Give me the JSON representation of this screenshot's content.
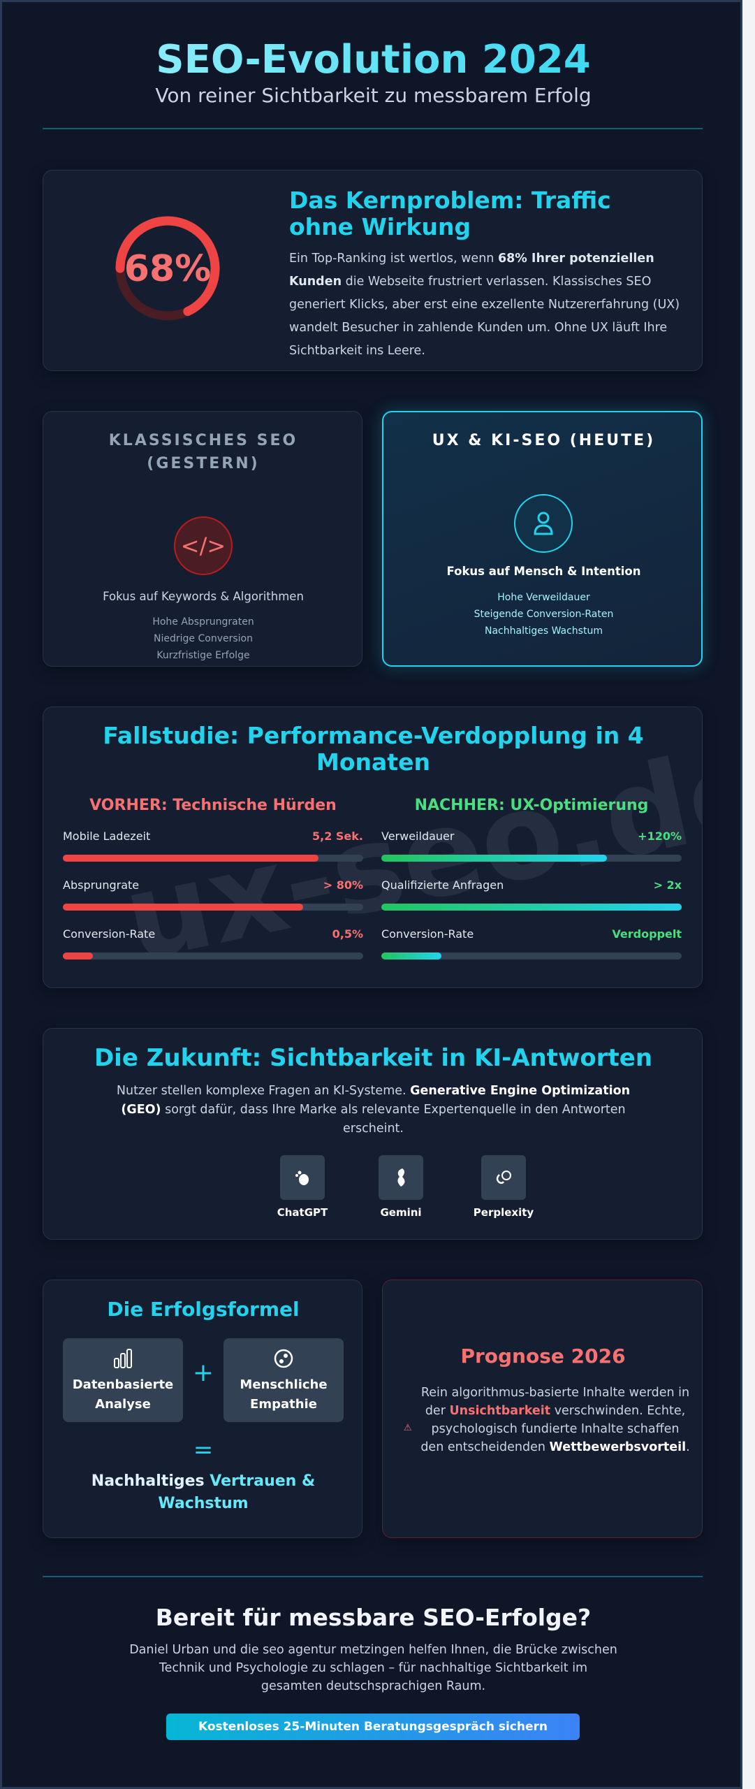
{
  "header": {
    "title": "SEO-Evolution 2024",
    "subtitle": "Von reiner Sichtbarkeit zu messbarem Erfolg"
  },
  "problem": {
    "percent": 68,
    "percent_label": "68%",
    "title": "Das Kernproblem: Traffic ohne Wirkung",
    "text_pre": "Ein Top-Ranking ist wertlos, wenn ",
    "text_bold": "68% Ihrer potenziellen Kunden",
    "text_post": " die Webseite frustriert verlassen. Klassisches SEO generiert Klicks, aber erst eine exzellente Nutzererfahrung (UX) wandelt Besucher in zahlende Kunden um. Ohne UX läuft Ihre Sichtbarkeit ins Leere."
  },
  "classic": {
    "title": "KLASSISCHES SEO (GESTERN)",
    "icon": "code-icon",
    "focus": "Fokus auf Keywords & Algorithmen",
    "items": [
      "Hohe Absprungraten",
      "Niedrige Conversion",
      "Kurzfristige Erfolge"
    ]
  },
  "modern": {
    "title": "UX & KI-SEO (HEUTE)",
    "icon": "user-icon",
    "focus": "Fokus auf Mensch & Intention",
    "items": [
      "Hohe Verweildauer",
      "Steigende Conversion-Raten",
      "Nachhaltiges Wachstum"
    ]
  },
  "case": {
    "title": "Fallstudie: Performance-Verdopplung in 4 Monaten",
    "watermark": "ux-seo.de",
    "before": {
      "heading": "VORHER: Technische Hürden",
      "color": "#f87171",
      "metrics": [
        {
          "label": "Mobile Ladezeit",
          "value": "5,2 Sek.",
          "fill": 85
        },
        {
          "label": "Absprungrate",
          "value": "> 80%",
          "fill": 80
        },
        {
          "label": "Conversion-Rate",
          "value": "0,5%",
          "fill": 10
        }
      ]
    },
    "after": {
      "heading": "NACHHER: UX-Optimierung",
      "color": "#4ade80",
      "metrics": [
        {
          "label": "Verweildauer",
          "value": "+120%",
          "fill": 75
        },
        {
          "label": "Qualifizierte Anfragen",
          "value": "> 2x",
          "fill": 100
        },
        {
          "label": "Conversion-Rate",
          "value": "Verdoppelt",
          "fill": 20
        }
      ]
    }
  },
  "future": {
    "title": "Die Zukunft: Sichtbarkeit in KI-Antworten",
    "text_pre": "Nutzer stellen komplexe Fragen an KI-Systeme. ",
    "text_bold": "Generative Engine Optimization (GEO)",
    "text_post": " sorgt dafür, dass Ihre Marke als relevante Expertenquelle in den Antworten erscheint.",
    "tools": [
      {
        "name": "ChatGPT",
        "icon": "chatgpt-icon"
      },
      {
        "name": "Gemini",
        "icon": "gemini-icon"
      },
      {
        "name": "Perplexity",
        "icon": "perplexity-icon"
      }
    ]
  },
  "formula": {
    "title": "Die Erfolgsformel",
    "a": "Datenbasierte Analyse",
    "b": "Menschliche Empathie",
    "plus": "+",
    "equals": "=",
    "result_a": "Nachhaltiges ",
    "result_b": "Vertrauen & Wachstum"
  },
  "forecast": {
    "title": "Prognose 2026",
    "t1": "Rein algorithmus-basierte Inhalte werden in der ",
    "hl": "Unsichtbarkeit",
    "t2": " verschwinden. Echte, psychologisch fundierte Inhalte schaffen den entscheidenden ",
    "bold": "Wettbewerbsvorteil",
    "t3": "."
  },
  "cta": {
    "title": "Bereit für messbare SEO-Erfolge?",
    "text": "Daniel Urban und die seo agentur metzingen helfen Ihnen, die Brücke zwischen Technik und Psychologie zu schlagen – für nachhaltige Sichtbarkeit im gesamten deutschsprachigen Raum.",
    "button": "Kostenloses 25-Minuten Beratungsgespräch sichern"
  }
}
